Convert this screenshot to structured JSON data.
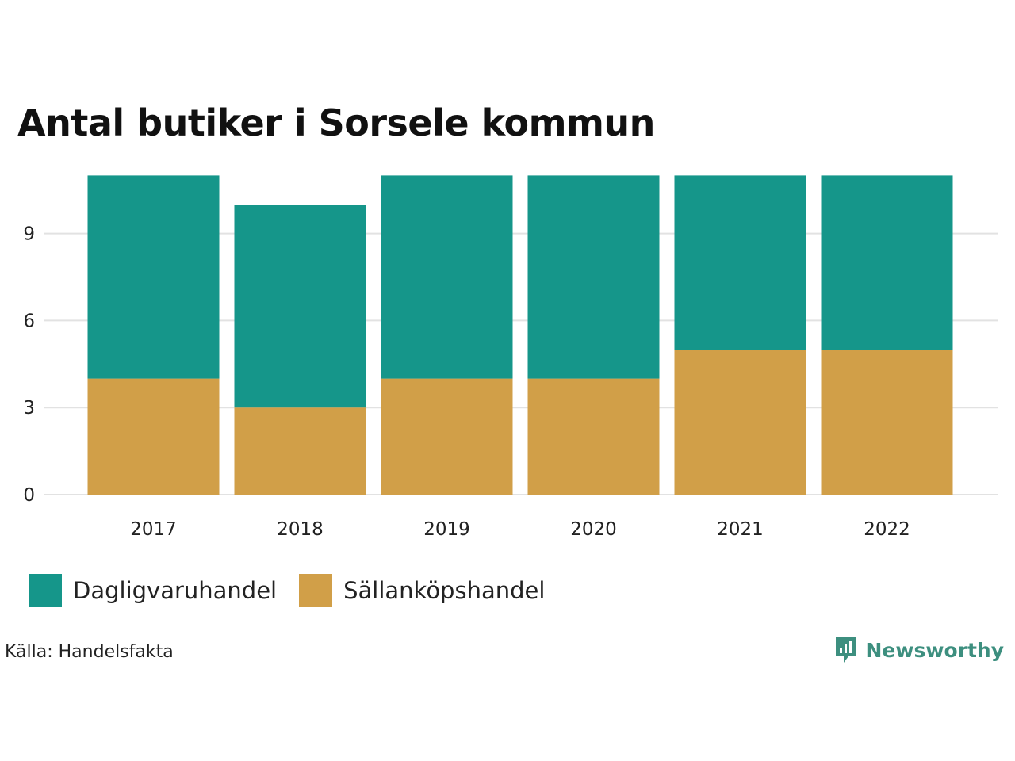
{
  "title": "Antal butiker i Sorsele kommun",
  "colors": {
    "dagligvaru": "#15968a",
    "sallankop": "#d19f48",
    "grid": "#e2e2e2",
    "brand": "#3d8f7f"
  },
  "chart_data": {
    "type": "bar",
    "stacked": true,
    "title": "Antal butiker i Sorsele kommun",
    "xlabel": "",
    "ylabel": "",
    "categories": [
      "2017",
      "2018",
      "2019",
      "2020",
      "2021",
      "2022"
    ],
    "series": [
      {
        "name": "Sällanköpshandel",
        "values": [
          4,
          3,
          4,
          4,
          5,
          5
        ]
      },
      {
        "name": "Dagligvaruhandel",
        "values": [
          7,
          7,
          7,
          7,
          6,
          6
        ]
      }
    ],
    "yticks": [
      "0",
      "3",
      "6",
      "9"
    ],
    "ylim": [
      0,
      11
    ],
    "grid": true,
    "legend": "bottom-left"
  },
  "legend": {
    "items": [
      "Dagligvaruhandel",
      "Sällanköpshandel"
    ]
  },
  "source": "Källa: Handelsfakta",
  "brand": {
    "name": "Newsworthy",
    "icon": "newsworthy-logo-icon"
  }
}
